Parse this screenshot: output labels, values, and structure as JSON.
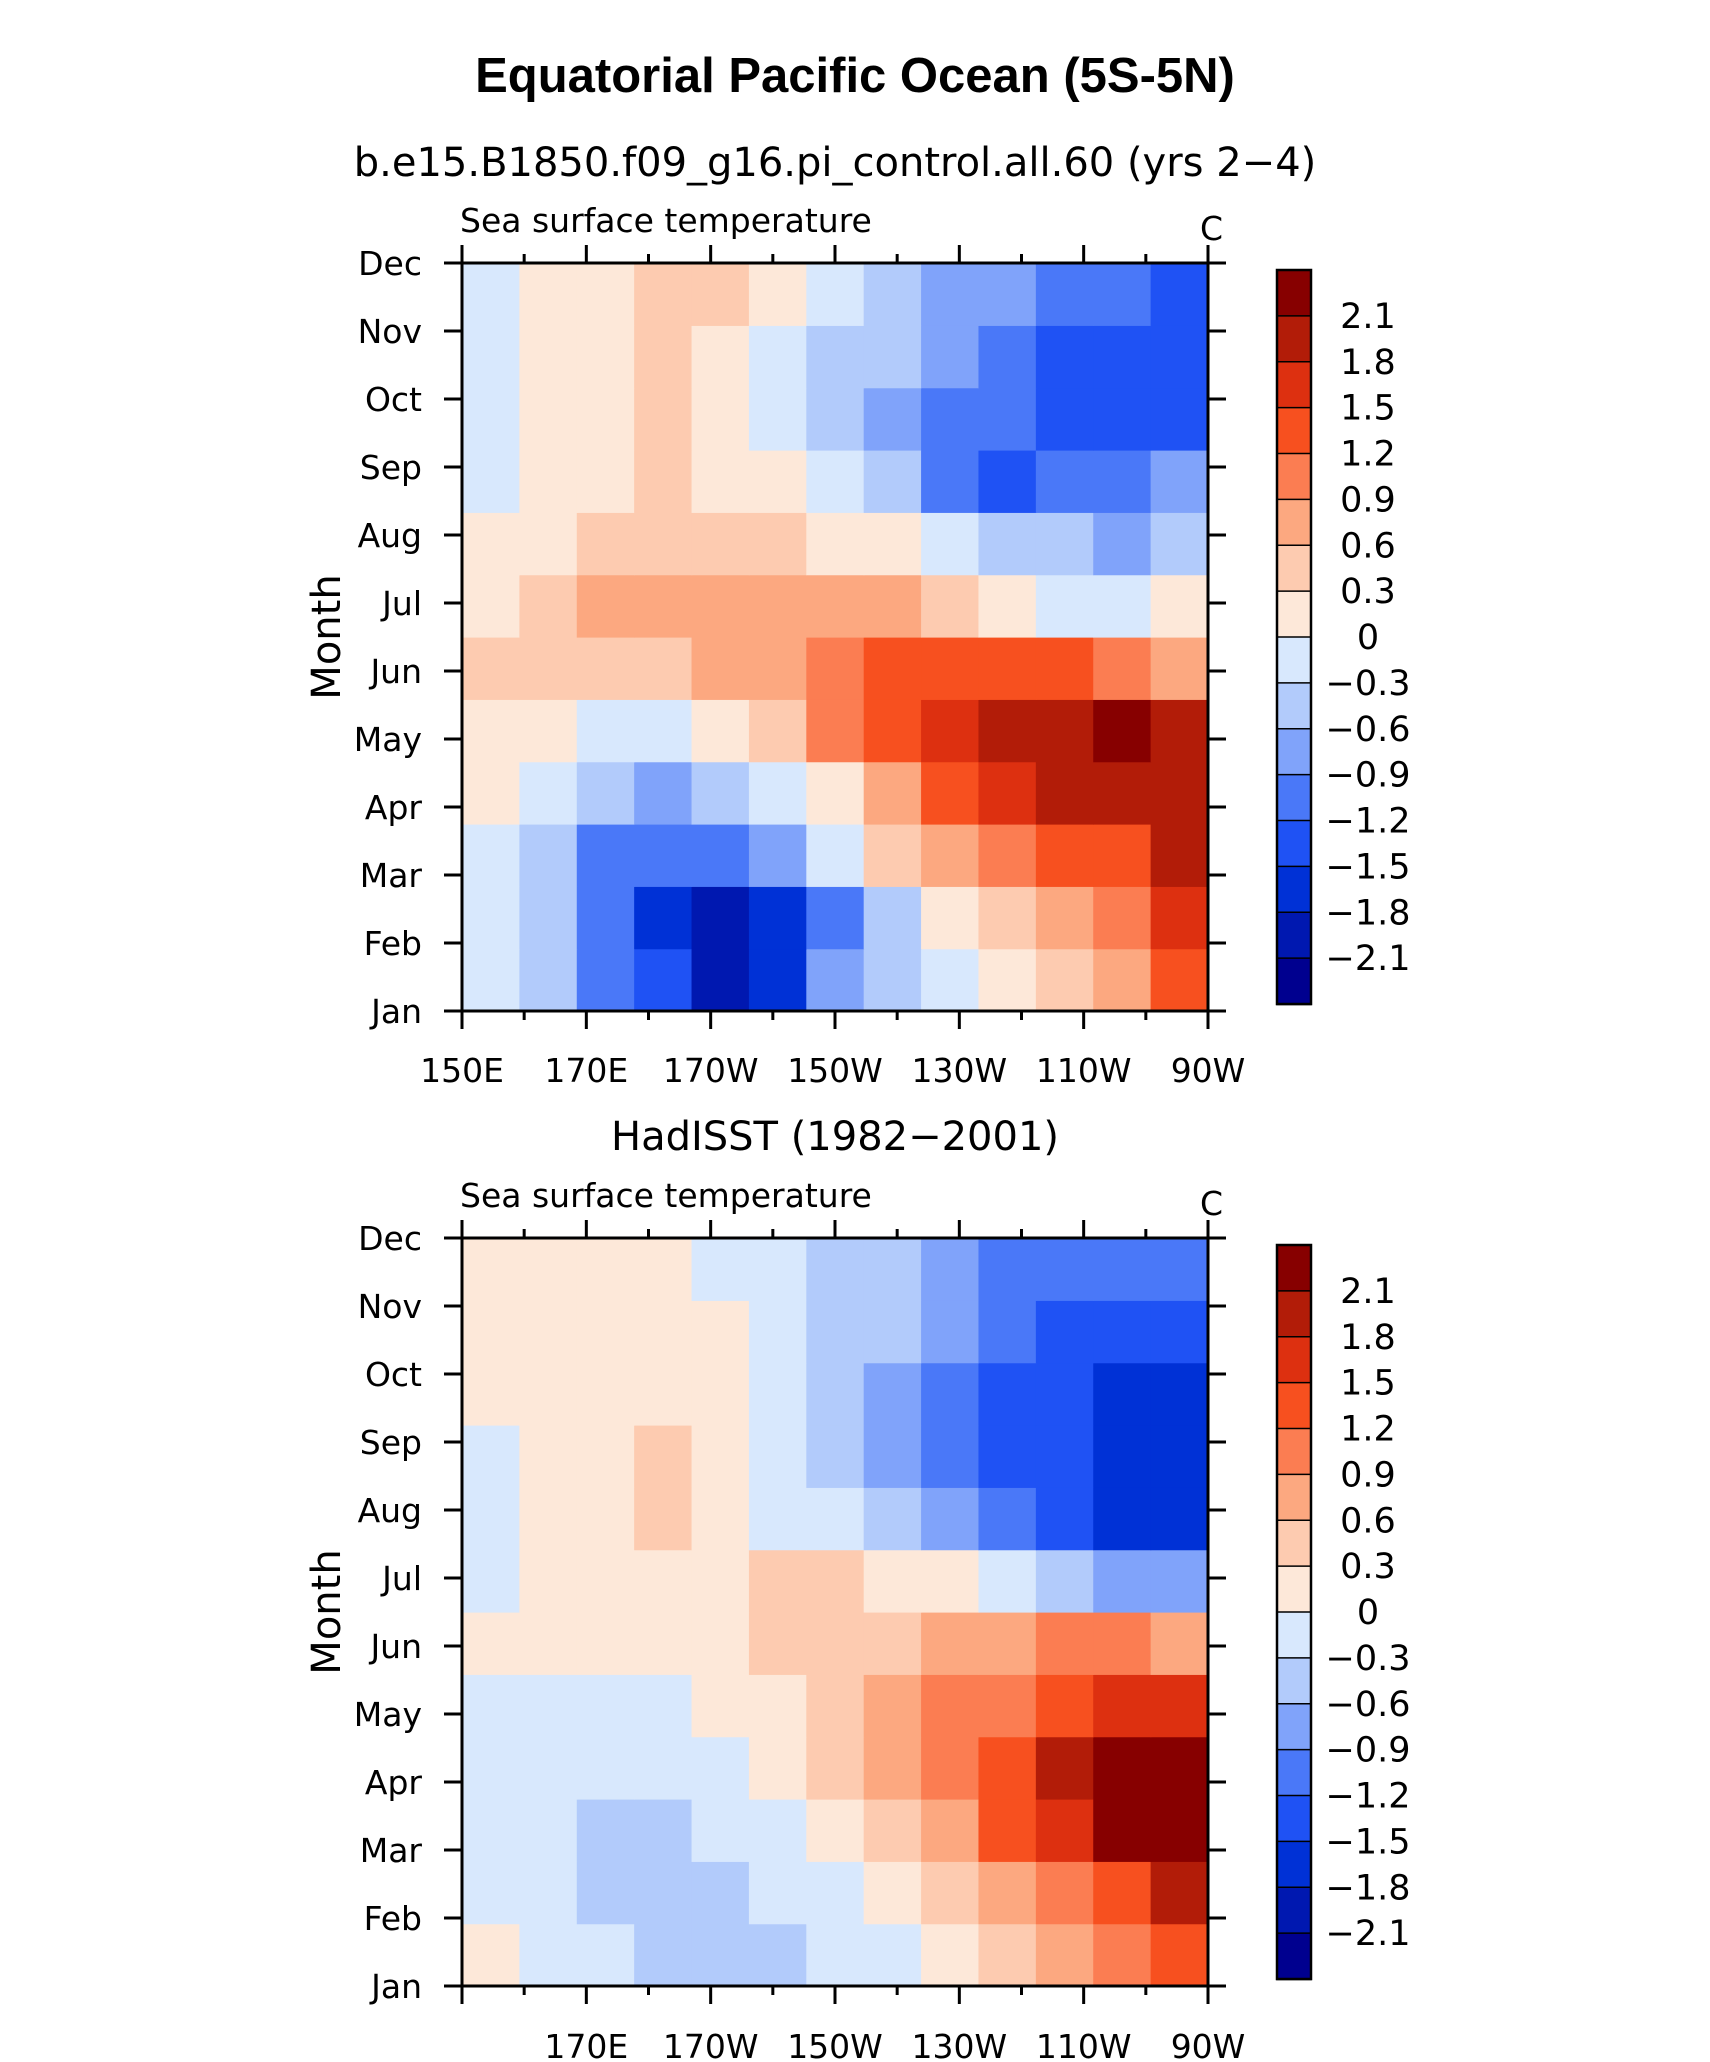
{
  "figure": {
    "title": "Equatorial Pacific Ocean (5S-5N)"
  },
  "colors": {
    "levels": [
      "#00008f",
      "#0018b0",
      "#0031d6",
      "#1f52f4",
      "#4a78f8",
      "#80a3fa",
      "#b2cbfb",
      "#d8e8fd",
      "#fde8d9",
      "#fdcbb0",
      "#fca880",
      "#fb7d52",
      "#f7501f",
      "#dd3010",
      "#b21c08",
      "#870000"
    ]
  },
  "chart_data": [
    {
      "type": "heatmap",
      "title": "b.e15.B1850.f09_g16.pi_control.all.60 (yrs 2−4)",
      "left_label": "Sea surface temperature",
      "right_label": "C",
      "ylabel": "Month",
      "x_ticks": [
        "150E",
        "170E",
        "170W",
        "150W",
        "130W",
        "110W",
        "90W"
      ],
      "y_ticks": [
        "Jan",
        "Feb",
        "Mar",
        "Apr",
        "May",
        "Jun",
        "Jul",
        "Aug",
        "Sep",
        "Oct",
        "Nov",
        "Dec"
      ],
      "colorbar_labels": [
        "2.1",
        "1.8",
        "1.5",
        "1.2",
        "0.9",
        "0.6",
        "0.3",
        "0",
        "−0.3",
        "−0.6",
        "−0.9",
        "−1.2",
        "−1.5",
        "−1.8",
        "−2.1"
      ],
      "x_lon": [
        150,
        170,
        190,
        210,
        230,
        250,
        270
      ],
      "xlim": [
        150,
        270
      ],
      "months": [
        "Jan",
        "Feb",
        "Mar",
        "Apr",
        "May",
        "Jun",
        "Jul",
        "Aug",
        "Sep",
        "Oct",
        "Nov",
        "Dec"
      ],
      "z": [
        [
          -0.2,
          -0.5,
          -1.0,
          -1.5,
          -2.0,
          -1.6,
          -0.9,
          -0.5,
          -0.2,
          0.2,
          0.4,
          0.7,
          1.2
        ],
        [
          -0.2,
          -0.6,
          -1.0,
          -1.6,
          -2.1,
          -1.8,
          -1.1,
          -0.6,
          0.1,
          0.5,
          0.8,
          1.1,
          1.6
        ],
        [
          -0.1,
          -0.6,
          -1.0,
          -1.2,
          -1.2,
          -0.8,
          -0.3,
          0.3,
          0.7,
          1.0,
          1.2,
          1.4,
          1.8
        ],
        [
          0.1,
          -0.2,
          -0.6,
          -0.8,
          -0.6,
          -0.3,
          0.2,
          0.8,
          1.3,
          1.6,
          1.8,
          1.9,
          2.0
        ],
        [
          0.2,
          0.1,
          -0.2,
          -0.2,
          0.1,
          0.5,
          1.0,
          1.3,
          1.5,
          1.8,
          2.0,
          2.1,
          1.8
        ],
        [
          0.3,
          0.3,
          0.4,
          0.4,
          0.6,
          0.8,
          1.0,
          1.3,
          1.4,
          1.4,
          1.2,
          1.0,
          0.8
        ],
        [
          0.2,
          0.3,
          0.6,
          0.7,
          0.8,
          0.8,
          0.7,
          0.6,
          0.4,
          0.1,
          -0.2,
          -0.3,
          0.2
        ],
        [
          0.0,
          0.2,
          0.4,
          0.5,
          0.5,
          0.4,
          0.2,
          0.0,
          -0.3,
          -0.5,
          -0.6,
          -0.7,
          -0.5
        ],
        [
          -0.1,
          0.1,
          0.2,
          0.3,
          0.2,
          0.1,
          -0.2,
          -0.6,
          -1.0,
          -1.4,
          -1.2,
          -1.0,
          -0.8
        ],
        [
          -0.1,
          0.0,
          0.2,
          0.3,
          0.2,
          -0.1,
          -0.5,
          -0.8,
          -1.1,
          -1.2,
          -1.4,
          -1.5,
          -1.5
        ],
        [
          -0.2,
          0.1,
          0.2,
          0.3,
          0.2,
          -0.1,
          -0.4,
          -0.6,
          -0.9,
          -1.1,
          -1.3,
          -1.5,
          -1.4
        ],
        [
          -0.1,
          0.1,
          0.2,
          0.4,
          0.3,
          0.0,
          -0.3,
          -0.5,
          -0.7,
          -0.9,
          -1.0,
          -1.2,
          -1.3
        ]
      ]
    },
    {
      "type": "heatmap",
      "title": "HadISST (1982−2001)",
      "left_label": "Sea surface temperature",
      "right_label": "C",
      "ylabel": "Month",
      "x_ticks": [
        "170E",
        "170W",
        "150W",
        "130W",
        "110W",
        "90W"
      ],
      "y_ticks": [
        "Jan",
        "Feb",
        "Mar",
        "Apr",
        "May",
        "Jun",
        "Jul",
        "Aug",
        "Sep",
        "Oct",
        "Nov",
        "Dec"
      ],
      "colorbar_labels": [
        "2.1",
        "1.8",
        "1.5",
        "1.2",
        "0.9",
        "0.6",
        "0.3",
        "0",
        "−0.3",
        "−0.6",
        "−0.9",
        "−1.2",
        "−1.5",
        "−1.8",
        "−2.1"
      ],
      "x_lon": [
        170,
        190,
        210,
        230,
        250,
        270
      ],
      "xlim": [
        150,
        270
      ],
      "months": [
        "Jan",
        "Feb",
        "Mar",
        "Apr",
        "May",
        "Jun",
        "Jul",
        "Aug",
        "Sep",
        "Oct",
        "Nov",
        "Dec"
      ],
      "z": [
        [
          0.0,
          -0.2,
          -0.3,
          -0.4,
          -0.4,
          -0.4,
          -0.3,
          -0.2,
          0.0,
          0.3,
          0.6,
          0.9,
          1.3
        ],
        [
          -0.2,
          -0.3,
          -0.4,
          -0.5,
          -0.4,
          -0.3,
          -0.1,
          0.1,
          0.3,
          0.7,
          1.1,
          1.4,
          1.8
        ],
        [
          -0.2,
          -0.3,
          -0.4,
          -0.4,
          -0.3,
          -0.1,
          0.1,
          0.4,
          0.8,
          1.2,
          1.7,
          2.1,
          2.2
        ],
        [
          -0.2,
          -0.2,
          -0.3,
          -0.3,
          -0.2,
          0.0,
          0.3,
          0.6,
          1.0,
          1.4,
          1.8,
          2.1,
          2.1
        ],
        [
          -0.1,
          -0.1,
          -0.1,
          -0.1,
          0.0,
          0.1,
          0.4,
          0.7,
          0.9,
          1.1,
          1.4,
          1.6,
          1.6
        ],
        [
          0.1,
          0.1,
          0.1,
          0.1,
          0.2,
          0.3,
          0.4,
          0.5,
          0.6,
          0.8,
          0.9,
          0.9,
          0.8
        ],
        [
          -0.1,
          0.1,
          0.1,
          0.2,
          0.2,
          0.3,
          0.3,
          0.2,
          0.0,
          -0.3,
          -0.5,
          -0.8,
          -0.9
        ],
        [
          -0.2,
          0.0,
          0.2,
          0.3,
          0.1,
          -0.1,
          -0.3,
          -0.6,
          -0.9,
          -1.2,
          -1.4,
          -1.6,
          -1.7
        ],
        [
          -0.1,
          0.0,
          0.2,
          0.4,
          0.2,
          -0.1,
          -0.4,
          -0.7,
          -1.0,
          -1.3,
          -1.5,
          -1.7,
          -1.7
        ],
        [
          0.0,
          0.1,
          0.2,
          0.2,
          0.1,
          -0.2,
          -0.4,
          -0.7,
          -1.0,
          -1.3,
          -1.5,
          -1.7,
          -1.7
        ],
        [
          0.1,
          0.2,
          0.2,
          0.1,
          0.0,
          -0.3,
          -0.4,
          -0.6,
          -0.9,
          -1.2,
          -1.4,
          -1.5,
          -1.4
        ],
        [
          0.1,
          0.1,
          0.1,
          0.0,
          -0.1,
          -0.3,
          -0.4,
          -0.5,
          -0.8,
          -1.0,
          -1.2,
          -1.2,
          -1.1
        ]
      ]
    }
  ]
}
